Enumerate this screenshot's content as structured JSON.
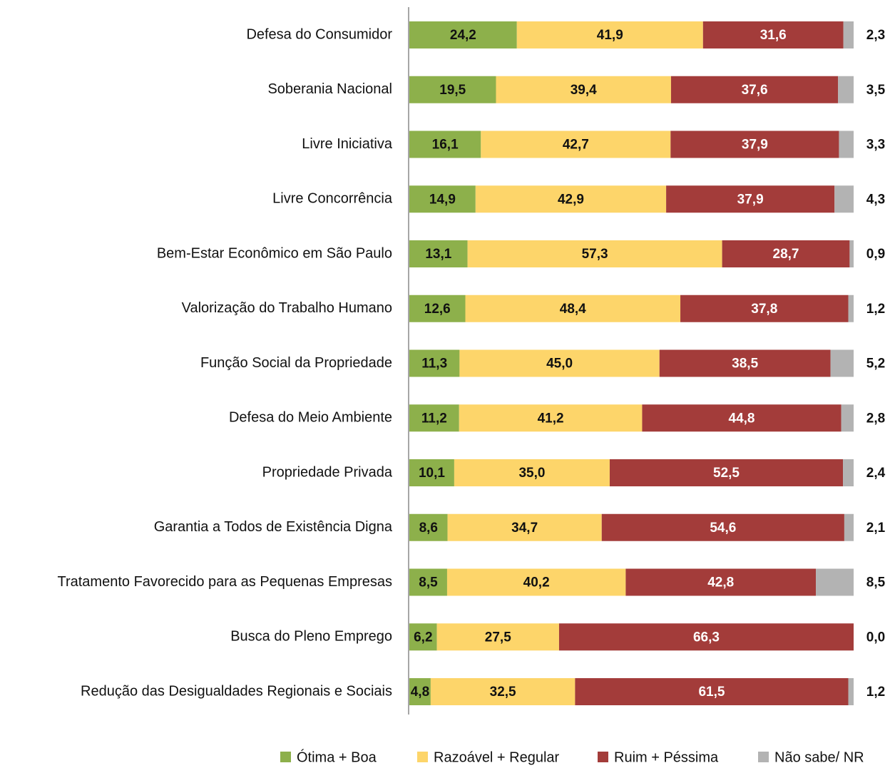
{
  "chart_data": {
    "type": "stacked-bar-horizontal",
    "categories": [
      "Defesa do Consumidor",
      "Soberania Nacional",
      "Livre Iniciativa",
      "Livre Concorrência",
      "Bem-Estar Econômico em São Paulo",
      "Valorização do Trabalho Humano",
      "Função Social da Propriedade",
      "Defesa do Meio Ambiente",
      "Propriedade Privada",
      "Garantia a Todos de Existência Digna",
      "Tratamento Favorecido para as Pequenas Empresas",
      "Busca do Pleno Emprego",
      "Redução das Desigualdades Regionais e Sociais"
    ],
    "xlim": [
      0,
      100
    ],
    "legend": "bottom",
    "series": [
      {
        "name": "Ótima + Boa",
        "color": "#8db04b",
        "values": [
          24.2,
          19.5,
          16.1,
          14.9,
          13.1,
          12.6,
          11.3,
          11.2,
          10.1,
          8.6,
          8.5,
          6.2,
          4.8
        ],
        "value_labels": [
          "24,2",
          "19,5",
          "16,1",
          "14,9",
          "13,1",
          "12,6",
          "11,3",
          "11,2",
          "10,1",
          "8,6",
          "8,5",
          "6,2",
          "4,8"
        ]
      },
      {
        "name": "Razoável + Regular",
        "color": "#fdd56a",
        "values": [
          41.9,
          39.4,
          42.7,
          42.9,
          57.3,
          48.4,
          45.0,
          41.2,
          35.0,
          34.7,
          40.2,
          27.5,
          32.5
        ],
        "value_labels": [
          "41,9",
          "39,4",
          "42,7",
          "42,9",
          "57,3",
          "48,4",
          "45,0",
          "41,2",
          "35,0",
          "34,7",
          "40,2",
          "27,5",
          "32,5"
        ]
      },
      {
        "name": "Ruim + Péssima",
        "color": "#a33c3a",
        "values": [
          31.6,
          37.6,
          37.9,
          37.9,
          28.7,
          37.8,
          38.5,
          44.8,
          52.5,
          54.6,
          42.8,
          66.3,
          61.5
        ],
        "value_labels": [
          "31,6",
          "37,6",
          "37,9",
          "37,9",
          "28,7",
          "37,8",
          "38,5",
          "44,8",
          "52,5",
          "54,6",
          "42,8",
          "66,3",
          "61,5"
        ]
      },
      {
        "name": "Não sabe/ NR",
        "color": "#b3b3b3",
        "values": [
          2.3,
          3.5,
          3.3,
          4.3,
          0.9,
          1.2,
          5.2,
          2.8,
          2.4,
          2.1,
          8.5,
          0.0,
          1.2
        ],
        "value_labels": [
          "2,3",
          "3,5",
          "3,3",
          "4,3",
          "0,9",
          "1,2",
          "5,2",
          "2,8",
          "2,4",
          "2,1",
          "8,5",
          "0,0",
          "1,2"
        ]
      }
    ]
  }
}
